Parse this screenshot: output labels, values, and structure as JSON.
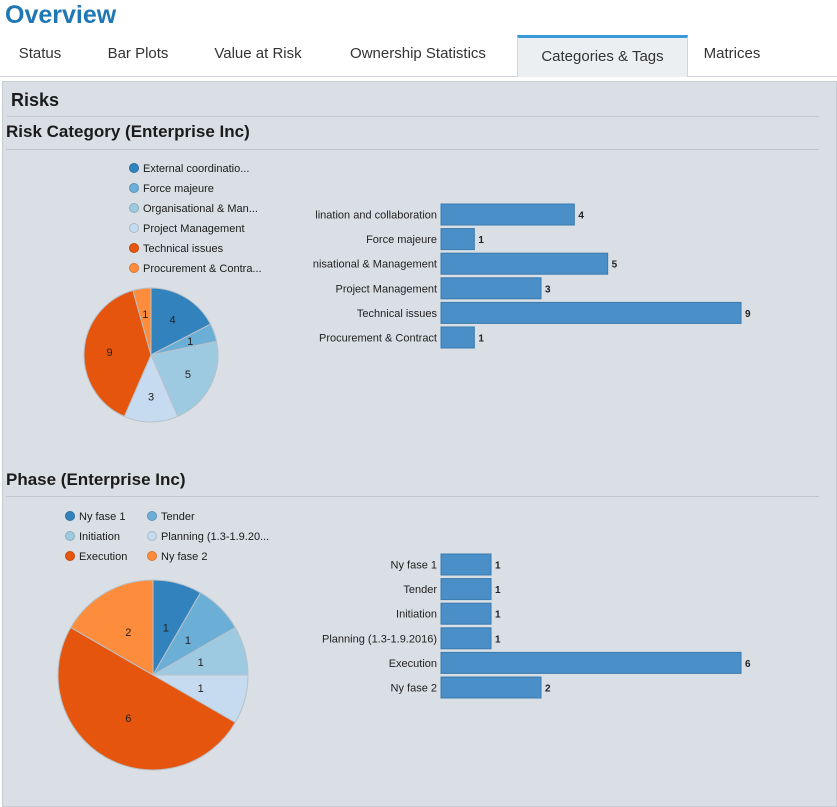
{
  "page": {
    "title": "Overview"
  },
  "tabs": [
    {
      "label": "Status",
      "active": false
    },
    {
      "label": "Bar Plots",
      "active": false
    },
    {
      "label": "Value at Risk",
      "active": false
    },
    {
      "label": "Ownership Statistics",
      "active": false
    },
    {
      "label": "Categories & Tags",
      "active": true
    },
    {
      "label": "Matrices",
      "active": false
    }
  ],
  "section": {
    "title": "Risks"
  },
  "colors": {
    "bar": "#4a8fc7",
    "bar_stroke": "#3b7bb0",
    "panel": "#d9dfe4",
    "tab_accent": "#3a9ad9"
  },
  "chart_data": [
    {
      "type": "bar",
      "title": "Risk Category (Enterprise Inc)",
      "categories": [
        "lination and collaboration",
        "Force majeure",
        "nisational & Management",
        "Project Management",
        "Technical issues",
        "Procurement & Contract"
      ],
      "values": [
        4,
        1,
        5,
        3,
        9,
        1
      ],
      "xlim": [
        0,
        9
      ],
      "legend": [
        {
          "label": "External coordinatio...",
          "color": "#3182bd"
        },
        {
          "label": "Force majeure",
          "color": "#6baed6"
        },
        {
          "label": "Organisational & Man...",
          "color": "#9ecae1"
        },
        {
          "label": "Project Management",
          "color": "#c6dbef"
        },
        {
          "label": "Technical issues",
          "color": "#e6550d"
        },
        {
          "label": "Procurement & Contra...",
          "color": "#fd8d3c"
        }
      ],
      "pie": {
        "values": [
          4,
          1,
          5,
          3,
          9,
          1
        ],
        "colors": [
          "#3182bd",
          "#6baed6",
          "#9ecae1",
          "#c6dbef",
          "#e6550d",
          "#fd8d3c"
        ]
      }
    },
    {
      "type": "bar",
      "title": "Phase (Enterprise Inc)",
      "categories": [
        "Ny fase 1",
        "Tender",
        "Initiation",
        "Planning (1.3-1.9.2016)",
        "Execution",
        "Ny fase 2"
      ],
      "values": [
        1,
        1,
        1,
        1,
        6,
        2
      ],
      "xlim": [
        0,
        6
      ],
      "legend": [
        {
          "label": "Ny fase 1",
          "color": "#3182bd"
        },
        {
          "label": "Tender",
          "color": "#6baed6"
        },
        {
          "label": "Initiation",
          "color": "#9ecae1"
        },
        {
          "label": "Planning (1.3-1.9.20...",
          "color": "#c6dbef"
        },
        {
          "label": "Execution",
          "color": "#e6550d"
        },
        {
          "label": "Ny fase 2",
          "color": "#fd8d3c"
        }
      ],
      "pie": {
        "values": [
          1,
          1,
          1,
          1,
          6,
          2
        ],
        "colors": [
          "#3182bd",
          "#6baed6",
          "#9ecae1",
          "#c6dbef",
          "#e6550d",
          "#fd8d3c"
        ]
      }
    }
  ]
}
